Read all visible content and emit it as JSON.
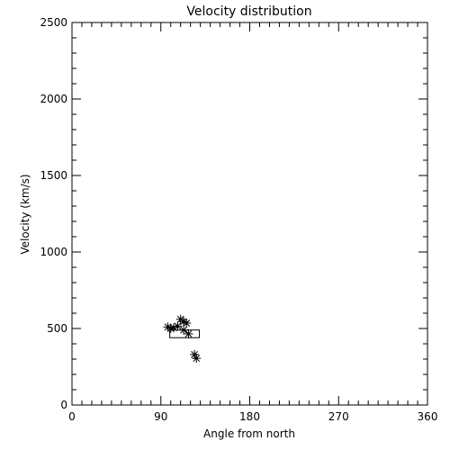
{
  "chart_data": {
    "type": "scatter",
    "title": "Velocity distribution",
    "xlabel": "Angle from north",
    "ylabel": "Velocity (km/s)",
    "xlim": [
      0,
      360
    ],
    "ylim": [
      0,
      2500
    ],
    "xticks": [
      0,
      90,
      180,
      270,
      360
    ],
    "xtick_labels": [
      "0",
      "90",
      "180",
      "270",
      "360"
    ],
    "yticks": [
      0,
      500,
      1000,
      1500,
      2000,
      2500
    ],
    "ytick_labels": [
      "0",
      "500",
      "1000",
      "1500",
      "2000",
      "2500"
    ],
    "x_minor_step": 10,
    "y_minor_step": 100,
    "grid": false,
    "marker": "asterisk",
    "points": [
      {
        "x": 97,
        "y": 510
      },
      {
        "x": 100,
        "y": 500
      },
      {
        "x": 103,
        "y": 505
      },
      {
        "x": 107,
        "y": 515
      },
      {
        "x": 110,
        "y": 560
      },
      {
        "x": 113,
        "y": 545
      },
      {
        "x": 116,
        "y": 535
      },
      {
        "x": 113,
        "y": 490
      },
      {
        "x": 118,
        "y": 465
      },
      {
        "x": 124,
        "y": 330
      },
      {
        "x": 126,
        "y": 305
      }
    ],
    "box": {
      "x0": 99,
      "x1": 129,
      "y0": 440,
      "y1": 490
    }
  }
}
